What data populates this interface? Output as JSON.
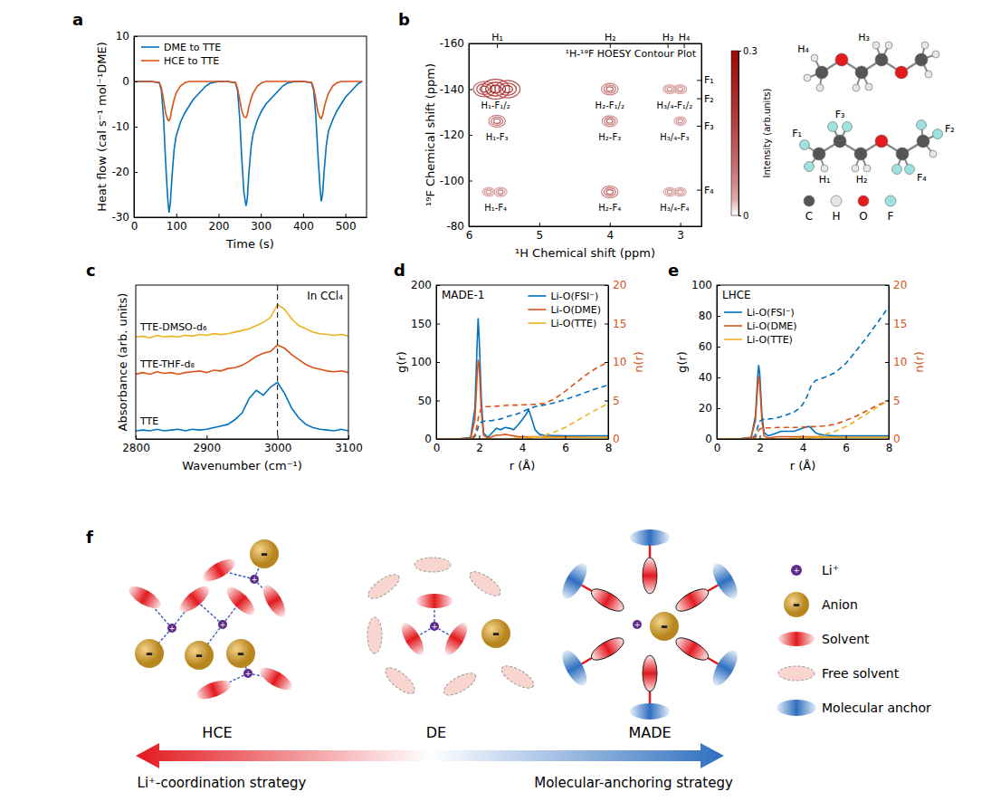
{
  "chart_data": [
    {
      "type": "line",
      "panel": "a",
      "x": [
        0,
        20,
        40,
        60,
        65,
        70,
        75,
        80,
        83,
        86,
        90,
        95,
        100,
        110,
        120,
        130,
        140,
        150,
        160,
        170,
        180,
        200,
        220,
        240,
        245,
        250,
        255,
        260,
        265,
        268,
        272,
        277,
        282,
        292,
        302,
        312,
        322,
        332,
        342,
        352,
        362,
        380,
        400,
        420,
        425,
        430,
        435,
        440,
        443,
        446,
        450,
        455,
        460,
        470,
        480,
        490,
        500,
        510,
        520,
        530,
        540
      ],
      "xlabel": "Time (s)",
      "ylabel": "Heat flow (cal s⁻¹ mol⁻¹DME)",
      "xlim": [
        0,
        550
      ],
      "xticks": [
        0,
        100,
        200,
        300,
        400,
        500
      ],
      "ylim": [
        -30,
        10
      ],
      "yticks": [
        -30,
        -20,
        -10,
        0,
        10
      ],
      "legend": "top-left",
      "series": [
        {
          "name": "DME to TTE",
          "color": "#0072BD",
          "values": [
            0,
            0,
            0,
            -0.3,
            -2,
            -8,
            -18,
            -26,
            -29,
            -27,
            -21,
            -15,
            -12,
            -9,
            -7,
            -5.5,
            -4,
            -3,
            -2,
            -1,
            -0.4,
            0,
            0,
            -0.3,
            -2,
            -8,
            -17,
            -24.5,
            -27.5,
            -26,
            -20,
            -14.5,
            -11.5,
            -8.5,
            -6.5,
            -5,
            -4,
            -3,
            -2,
            -1,
            -0.4,
            0,
            0,
            -0.3,
            -2,
            -7.5,
            -16,
            -23.5,
            -26.5,
            -25,
            -19.5,
            -14,
            -11,
            -8.5,
            -6.5,
            -5,
            -3.5,
            -2.5,
            -1.5,
            -0.5,
            0
          ]
        },
        {
          "name": "HCE to TTE",
          "color": "#D95319",
          "values": [
            0,
            0,
            0,
            -0.2,
            -1.5,
            -4,
            -7,
            -8.5,
            -8.7,
            -8,
            -6,
            -4,
            -2.5,
            -1,
            -0.3,
            0,
            0,
            0,
            0,
            0,
            0,
            0,
            0,
            -0.2,
            -1.5,
            -4,
            -6.5,
            -7.8,
            -8,
            -7.3,
            -5.5,
            -3.8,
            -2.5,
            -1,
            -0.3,
            0,
            0,
            0,
            0,
            0,
            0,
            0,
            0,
            -0.2,
            -1.5,
            -4,
            -6.7,
            -8,
            -8.2,
            -7.5,
            -5.7,
            -4,
            -2.6,
            -1,
            -0.3,
            0,
            0,
            0,
            0,
            0,
            0
          ]
        }
      ]
    },
    {
      "type": "contour",
      "panel": "b",
      "title": "¹H-¹⁹F HOESY Contour Plot",
      "xlabel": "¹H Chemical shift (ppm)",
      "ylabel": "¹⁹F Chemical shift (ppm)",
      "xlim": [
        6,
        2.7
      ],
      "xticks": [
        6,
        5,
        4,
        3
      ],
      "ylim": [
        -160,
        -80
      ],
      "yticks": [
        -160,
        -140,
        -120,
        -100,
        -80
      ],
      "top_ticks": [
        {
          "value": 5.6,
          "label": "H₁"
        },
        {
          "value": 4,
          "label": "H₂"
        },
        {
          "value": 3.18,
          "label": "H₃"
        },
        {
          "value": 2.95,
          "label": "H₄"
        }
      ],
      "right_ticks": [
        {
          "value": -144,
          "label": "F₁"
        },
        {
          "value": -136,
          "label": "F₂"
        },
        {
          "value": -124,
          "label": "F₃"
        },
        {
          "value": -96,
          "label": "F₄"
        }
      ],
      "peaks": {
        "x": [
          5.78,
          5.62,
          5.45,
          5.6,
          5.72,
          5.55,
          4,
          4,
          4,
          3.15,
          3,
          3,
          3.15,
          3
        ],
        "y": [
          -140,
          -140,
          -140,
          -126,
          -95,
          -95,
          -140,
          -126,
          -95,
          -140,
          -140,
          -126,
          -95,
          -95
        ],
        "intensity": [
          0.2,
          0.3,
          0.25,
          0.12,
          0.05,
          0.06,
          0.12,
          0.1,
          0.12,
          0.06,
          0.06,
          0.05,
          0.05,
          0.05
        ]
      },
      "peak_labels": [
        {
          "text": "H₁-F₁/₂",
          "x": 5.62,
          "y": -140
        },
        {
          "text": "H₁-F₃",
          "x": 5.6,
          "y": -126
        },
        {
          "text": "H₁-F₄",
          "x": 5.62,
          "y": -95
        },
        {
          "text": "H₂-F₁/₂",
          "x": 4,
          "y": -140
        },
        {
          "text": "H₂-F₃",
          "x": 4,
          "y": -126
        },
        {
          "text": "H₂-F₄",
          "x": 4,
          "y": -95
        },
        {
          "text": "H₃/₄-F₁/₂",
          "x": 3.08,
          "y": -140
        },
        {
          "text": "H₃/₄-F₃",
          "x": 3.08,
          "y": -126
        },
        {
          "text": "H₃/₄-F₄",
          "x": 3.08,
          "y": -95
        }
      ],
      "colorbar": {
        "label": "Intensity (arb.units)",
        "range": [
          0,
          0.3
        ],
        "ticks": [
          0,
          0.3
        ]
      }
    },
    {
      "type": "line",
      "panel": "c",
      "x": [
        2800,
        2810,
        2820,
        2830,
        2840,
        2850,
        2860,
        2870,
        2880,
        2890,
        2900,
        2910,
        2920,
        2930,
        2940,
        2950,
        2960,
        2970,
        2980,
        2990,
        3000,
        3010,
        3020,
        3030,
        3040,
        3050,
        3060,
        3070,
        3080,
        3090,
        3100
      ],
      "xlabel": "Wavenumber (cm⁻¹)",
      "ylabel": "Absorbance (arb. units)",
      "xlim": [
        2800,
        3100
      ],
      "xticks": [
        2800,
        2900,
        3000,
        3100
      ],
      "ylim": [
        0,
        9.5
      ],
      "tick_labels": "x",
      "annotations": [
        "In CCl₄"
      ],
      "vline": 3000,
      "series": [
        {
          "name": "TTE-DMSO-d₆",
          "color": "#EDB120",
          "values": [
            6.3,
            6.35,
            6.25,
            6.4,
            6.3,
            6.35,
            6.3,
            6.4,
            6.35,
            6.45,
            6.4,
            6.5,
            6.45,
            6.5,
            6.6,
            6.7,
            6.8,
            7.0,
            7.2,
            7.5,
            8.3,
            8.0,
            7.4,
            7.0,
            6.8,
            6.6,
            6.5,
            6.45,
            6.4,
            6.45,
            6.35
          ]
        },
        {
          "name": "TTE-THF-d₈",
          "color": "#D95319",
          "values": [
            4.0,
            4.1,
            4.0,
            4.15,
            4.05,
            4.1,
            4.0,
            4.1,
            4.15,
            4.2,
            4.1,
            4.25,
            4.2,
            4.35,
            4.4,
            4.55,
            4.8,
            5.1,
            5.3,
            5.4,
            5.8,
            5.6,
            5.2,
            4.9,
            4.6,
            4.4,
            4.3,
            4.2,
            4.15,
            4.2,
            4.1
          ]
        },
        {
          "name": "TTE",
          "color": "#0072BD",
          "values": [
            0.5,
            0.55,
            0.5,
            0.6,
            0.5,
            0.55,
            0.6,
            0.5,
            0.6,
            0.55,
            0.6,
            0.7,
            0.8,
            0.9,
            1.2,
            1.6,
            2.5,
            3.0,
            2.7,
            3.2,
            3.5,
            2.8,
            1.9,
            1.3,
            0.9,
            0.7,
            0.6,
            0.55,
            0.5,
            0.6,
            0.5
          ]
        }
      ]
    },
    {
      "type": "line",
      "panel": "d",
      "title": "MADE-1",
      "x": [
        0,
        1,
        1.6,
        1.8,
        1.9,
        1.95,
        2,
        2.1,
        2.2,
        2.4,
        2.6,
        2.8,
        3,
        3.2,
        3.4,
        3.6,
        3.8,
        4,
        4.2,
        4.3,
        4.4,
        4.6,
        4.8,
        5,
        5.5,
        6,
        6.5,
        7,
        7.5,
        8
      ],
      "xlabel": "r (Å)",
      "ylabel": "g(r)",
      "y2label": "n(r)",
      "xlim": [
        0,
        8
      ],
      "xticks": [
        0,
        2,
        4,
        6,
        8
      ],
      "ylim": [
        0,
        200
      ],
      "yticks": [
        0,
        50,
        100,
        150,
        200
      ],
      "y2lim": [
        0,
        20
      ],
      "y2ticks": [
        0,
        5,
        10,
        15,
        20
      ],
      "legend": "top-right",
      "series": [
        {
          "name": "Li-O(FSI⁻)",
          "color": "#0072BD",
          "line_style": "solid",
          "values": [
            0,
            0,
            2,
            40,
            120,
            157,
            130,
            50,
            8,
            2,
            8,
            14,
            12,
            15,
            14,
            12,
            18,
            25,
            33,
            38,
            30,
            12,
            6,
            5,
            4.5,
            4,
            4,
            4,
            4,
            4
          ]
        },
        {
          "name": "Li-O(DME)",
          "color": "#D95319",
          "line_style": "solid",
          "values": [
            0,
            0,
            1,
            25,
            80,
            103,
            95,
            35,
            5,
            1,
            3,
            5,
            5,
            6,
            5,
            4,
            3,
            3,
            3,
            3,
            3,
            3,
            3,
            3,
            3,
            2.5,
            2.5,
            2,
            2,
            2
          ]
        },
        {
          "name": "Li-O(TTE)",
          "color": "#EDB120",
          "line_style": "solid",
          "values": [
            0,
            0,
            0,
            0,
            0,
            0,
            0,
            0,
            0,
            0,
            0,
            0,
            0,
            0,
            0.2,
            0.5,
            1,
            1.5,
            2,
            2.2,
            2.5,
            2.6,
            2.5,
            2.2,
            2,
            2,
            2,
            2,
            2,
            2
          ]
        },
        {
          "color": "#0072BD",
          "line_style": "dashed",
          "axis": "y2",
          "values": [
            0,
            0,
            0,
            0.3,
            1,
            1.5,
            1.9,
            2.2,
            2.3,
            2.35,
            2.4,
            2.5,
            2.6,
            2.8,
            3.0,
            3.1,
            3.3,
            3.5,
            3.8,
            3.9,
            4.0,
            4.2,
            4.3,
            4.4,
            4.7,
            5.1,
            5.6,
            6.1,
            6.6,
            7.0
          ]
        },
        {
          "color": "#D95319",
          "line_style": "dashed",
          "axis": "y2",
          "values": [
            0,
            0,
            0,
            0.5,
            1.8,
            2.6,
            3.3,
            4.0,
            4.2,
            4.2,
            4.2,
            4.25,
            4.3,
            4.35,
            4.4,
            4.4,
            4.4,
            4.45,
            4.45,
            4.5,
            4.5,
            4.5,
            4.55,
            4.6,
            5.2,
            6.2,
            7.3,
            8.4,
            9.3,
            10.0
          ]
        },
        {
          "color": "#EDB120",
          "line_style": "dashed",
          "axis": "y2",
          "values": [
            0,
            0,
            0,
            0,
            0,
            0,
            0,
            0,
            0,
            0,
            0,
            0,
            0,
            0,
            0,
            0,
            0,
            0,
            0.05,
            0.1,
            0.1,
            0.2,
            0.3,
            0.45,
            0.9,
            1.5,
            2.3,
            3.1,
            3.9,
            4.6
          ]
        }
      ]
    },
    {
      "type": "line",
      "panel": "e",
      "title": "LHCE",
      "x": [
        0,
        1,
        1.6,
        1.8,
        1.9,
        1.95,
        2,
        2.1,
        2.2,
        2.4,
        2.6,
        2.8,
        3,
        3.2,
        3.4,
        3.6,
        3.8,
        4,
        4.2,
        4.3,
        4.4,
        4.6,
        4.8,
        5,
        5.5,
        6,
        6.5,
        7,
        7.5,
        8
      ],
      "xlabel": "r (Å)",
      "ylabel": "g(r)",
      "y2label": "n(r)",
      "xlim": [
        0,
        8
      ],
      "xticks": [
        0,
        2,
        4,
        6,
        8
      ],
      "ylim": [
        0,
        100
      ],
      "yticks": [
        0,
        20,
        40,
        60,
        80,
        100
      ],
      "y2lim": [
        0,
        20
      ],
      "y2ticks": [
        0,
        5,
        10,
        15,
        20
      ],
      "legend": "top-left",
      "series": [
        {
          "name": "Li-O(FSI⁻)",
          "color": "#0072BD",
          "line_style": "solid",
          "values": [
            0,
            0,
            1,
            15,
            40,
            48,
            42,
            16,
            4,
            2,
            3,
            4,
            5,
            5,
            5,
            5,
            6,
            7,
            8,
            8,
            7,
            4,
            3,
            2.5,
            2,
            2,
            2,
            2,
            2,
            2
          ]
        },
        {
          "name": "Li-O(DME)",
          "color": "#D95319",
          "line_style": "solid",
          "values": [
            0,
            0,
            1,
            12,
            34,
            41,
            36,
            12,
            2,
            0.5,
            1,
            1.5,
            1.5,
            1.5,
            1.5,
            1.5,
            1.5,
            1.5,
            1.5,
            1.5,
            1.5,
            1.5,
            1.5,
            1.3,
            1.2,
            1,
            1,
            1,
            1,
            1
          ]
        },
        {
          "name": "Li-O(TTE)",
          "color": "#EDB120",
          "line_style": "solid",
          "values": [
            0,
            0,
            0,
            0,
            0,
            0,
            0,
            0,
            0,
            0,
            0,
            0,
            0,
            0,
            0.2,
            0.4,
            0.6,
            0.8,
            1,
            1,
            1,
            1,
            1,
            1,
            1,
            1,
            1,
            1,
            1,
            1
          ]
        },
        {
          "color": "#0072BD",
          "line_style": "dashed",
          "axis": "y2",
          "values": [
            0,
            0,
            0,
            0.5,
            1.5,
            2.0,
            2.3,
            2.5,
            2.55,
            2.6,
            2.65,
            2.75,
            2.9,
            3.1,
            3.3,
            3.5,
            3.9,
            4.5,
            5.5,
            6.3,
            7.0,
            7.6,
            7.8,
            8.0,
            8.6,
            9.8,
            11.5,
            13.3,
            15.2,
            17.2
          ]
        },
        {
          "color": "#D95319",
          "line_style": "dashed",
          "axis": "y2",
          "values": [
            0,
            0,
            0,
            0.2,
            0.8,
            1.1,
            1.3,
            1.4,
            1.45,
            1.45,
            1.45,
            1.5,
            1.5,
            1.5,
            1.5,
            1.5,
            1.5,
            1.55,
            1.55,
            1.6,
            1.6,
            1.6,
            1.65,
            1.7,
            1.9,
            2.4,
            3.0,
            3.7,
            4.4,
            5.0
          ]
        },
        {
          "color": "#EDB120",
          "line_style": "dashed",
          "axis": "y2",
          "values": [
            0,
            0,
            0,
            0,
            0,
            0,
            0,
            0,
            0,
            0,
            0,
            0,
            0,
            0,
            0,
            0,
            0,
            0,
            0.05,
            0.1,
            0.15,
            0.25,
            0.4,
            0.55,
            1.0,
            1.6,
            2.4,
            3.3,
            4.2,
            5.0
          ]
        }
      ]
    }
  ],
  "molecules": {
    "dme_labels": [
      "H₄",
      "H₃"
    ],
    "tte_labels": [
      "F₁",
      "F₃",
      "F₂",
      "F₄",
      "H₁",
      "H₂"
    ],
    "atom_legend": [
      {
        "label": "C",
        "color": "#555555"
      },
      {
        "label": "H",
        "color": "#e6e6e6"
      },
      {
        "label": "O",
        "color": "#e41a1c"
      },
      {
        "label": "F",
        "color": "#9fe0e0"
      }
    ]
  },
  "diagram": {
    "panel": "f",
    "groups": [
      "HCE",
      "DE",
      "MADE"
    ],
    "legend_items": [
      "Li⁺",
      "Anion",
      "Solvent",
      "Free solvent",
      "Molecular anchor"
    ],
    "li_sign": "+",
    "anion_sign": "-",
    "arrow_left": "Li⁺-coordination strategy",
    "arrow_right": "Molecular-anchoring strategy"
  }
}
